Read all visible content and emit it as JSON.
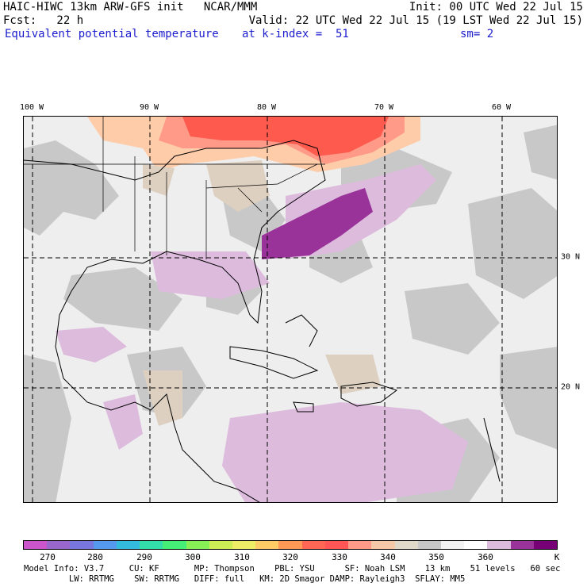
{
  "header": {
    "line1_left": "HAIC-HIWC 13km ARW-GFS init   NCAR/MMM",
    "line1_right": "Init: 00 UTC Wed 22 Jul 15",
    "line2_left": "Fcst:   22 h",
    "line2_right": "Valid: 22 UTC Wed 22 Jul 15 (19 LST Wed 22 Jul 15)",
    "line3_left": "Equivalent potential temperature",
    "line3_mid": "at k-index =  51",
    "line3_right": "sm= 2"
  },
  "axes": {
    "longitude_labels": [
      "100 W",
      "90 W",
      "80 W",
      "70 W",
      "60 W"
    ],
    "latitude_labels": [
      "30 N",
      "20 N"
    ]
  },
  "colorbar": {
    "colors": [
      "#cc55cc",
      "#9966cc",
      "#7777dd",
      "#5599ee",
      "#33bbdd",
      "#33ddaa",
      "#44ee77",
      "#88ee55",
      "#ccee55",
      "#eeee66",
      "#ffcc66",
      "#ff9955",
      "#ff6655",
      "#ff5555",
      "#ff9988",
      "#f5c8a8",
      "#e0d8c8",
      "#c8c8c8",
      "#f2f2f2",
      "#ffffff",
      "#ddbbdd",
      "#993399",
      "#770077"
    ],
    "labels": [
      "270",
      "280",
      "290",
      "300",
      "310",
      "320",
      "330",
      "340",
      "350",
      "360",
      "K"
    ]
  },
  "footer": {
    "line1": "Model Info: V3.7     CU: KF       MP: Thompson    PBL: YSU      SF: Noah LSM    13 km    51 levels   60 sec",
    "line2": "         LW: RRTMG    SW: RRTMG   DIFF: full   KM: 2D Smagor DAMP: Rayleigh3  SFLAY: MM5"
  }
}
